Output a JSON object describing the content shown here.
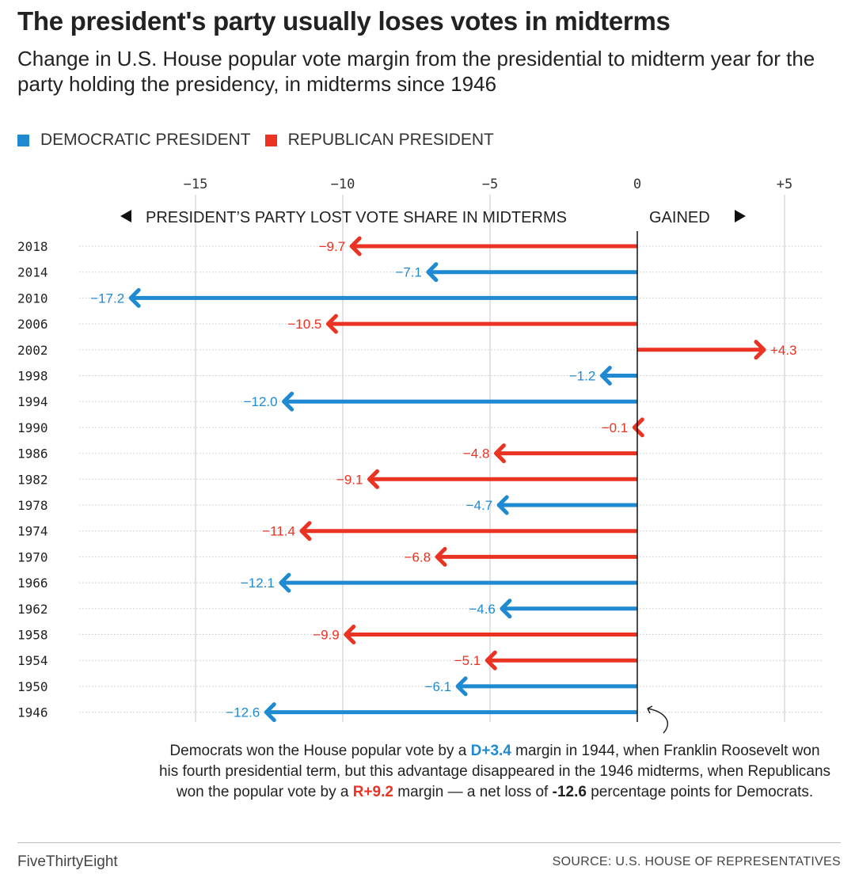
{
  "header": {
    "title": "The president's party usually loses votes in midterms",
    "subtitle": "Change in U.S. House popular vote margin from the presidential to midterm year for the party holding the presidency, in midterms since 1946"
  },
  "legend": {
    "dem_label": "DEMOCRATIC PRESIDENT",
    "rep_label": "REPUBLICAN PRESIDENT"
  },
  "colors": {
    "dem": "#1f8ad1",
    "rep": "#ea3323"
  },
  "direction": {
    "lost": "PRESIDENT’S PARTY LOST VOTE SHARE IN MIDTERMS",
    "gained": "GAINED"
  },
  "chart_data": {
    "type": "bar",
    "orientation": "horizontal",
    "title": "The president's party usually loses votes in midterms",
    "xlabel": "",
    "ylabel": "",
    "xlim": [
      -18.5,
      6.5
    ],
    "xticks": [
      -15,
      -10,
      -5,
      0,
      5
    ],
    "xtick_labels": [
      "−15",
      "−10",
      "−5",
      "0",
      "+5"
    ],
    "grid": true,
    "legend_position": "top-left",
    "categories": [
      "2018",
      "2014",
      "2010",
      "2006",
      "2002",
      "1998",
      "1994",
      "1990",
      "1986",
      "1982",
      "1978",
      "1974",
      "1970",
      "1966",
      "1962",
      "1958",
      "1954",
      "1950",
      "1946"
    ],
    "values": [
      -9.7,
      -7.1,
      -17.2,
      -10.5,
      4.3,
      -1.2,
      -12.0,
      -0.1,
      -4.8,
      -9.1,
      -4.7,
      -11.4,
      -6.8,
      -12.1,
      -4.6,
      -9.9,
      -5.1,
      -6.1,
      -12.6
    ],
    "value_labels": [
      "−9.7",
      "−7.1",
      "−17.2",
      "−10.5",
      "+4.3",
      "−1.2",
      "−12.0",
      "−0.1",
      "−4.8",
      "−9.1",
      "−4.7",
      "−11.4",
      "−6.8",
      "−12.1",
      "−4.6",
      "−9.9",
      "−5.1",
      "−6.1",
      "−12.6"
    ],
    "party": [
      "rep",
      "dem",
      "dem",
      "rep",
      "rep",
      "dem",
      "dem",
      "rep",
      "rep",
      "rep",
      "dem",
      "rep",
      "rep",
      "dem",
      "dem",
      "rep",
      "rep",
      "dem",
      "dem"
    ]
  },
  "annotation": {
    "t1": "Democrats won the House popular vote by a ",
    "d_margin": "D+3.4",
    "t2": " margin in 1944, when Franklin Roosevelt won his fourth presidential term, but this advantage disappeared in the 1946 midterms, when Republicans won the popular vote by a ",
    "r_margin": "R+9.2",
    "t3": " margin — a net loss of ",
    "net": "-12.6",
    "t4": " percentage points for Democrats."
  },
  "footer": {
    "brand": "FiveThirtyEight",
    "source": "SOURCE: U.S. HOUSE OF REPRESENTATIVES"
  }
}
